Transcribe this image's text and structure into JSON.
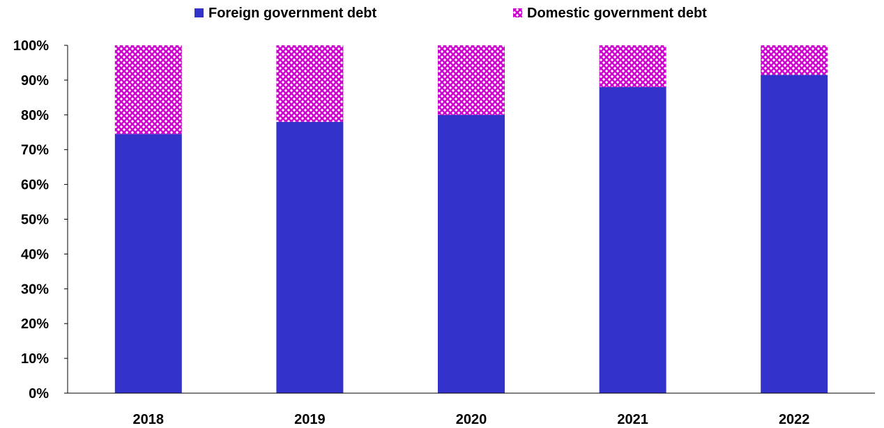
{
  "chart_data": {
    "type": "bar",
    "stacked": true,
    "percent": true,
    "categories": [
      "2018",
      "2019",
      "2020",
      "2021",
      "2022"
    ],
    "series": [
      {
        "name": "Foreign government debt",
        "values": [
          74.5,
          78,
          80,
          88,
          91.5
        ],
        "color": "#3333CC"
      },
      {
        "name": "Domestic government debt",
        "values": [
          25.5,
          22,
          20,
          12,
          8.5
        ],
        "color": "#CC00CC",
        "pattern": "dotted"
      }
    ],
    "ylim": [
      0,
      100
    ],
    "yticks": [
      "0%",
      "10%",
      "20%",
      "30%",
      "40%",
      "50%",
      "60%",
      "70%",
      "80%",
      "90%",
      "100%"
    ],
    "xlabel": "",
    "ylabel": "",
    "grid": false,
    "legend_position": "top"
  }
}
